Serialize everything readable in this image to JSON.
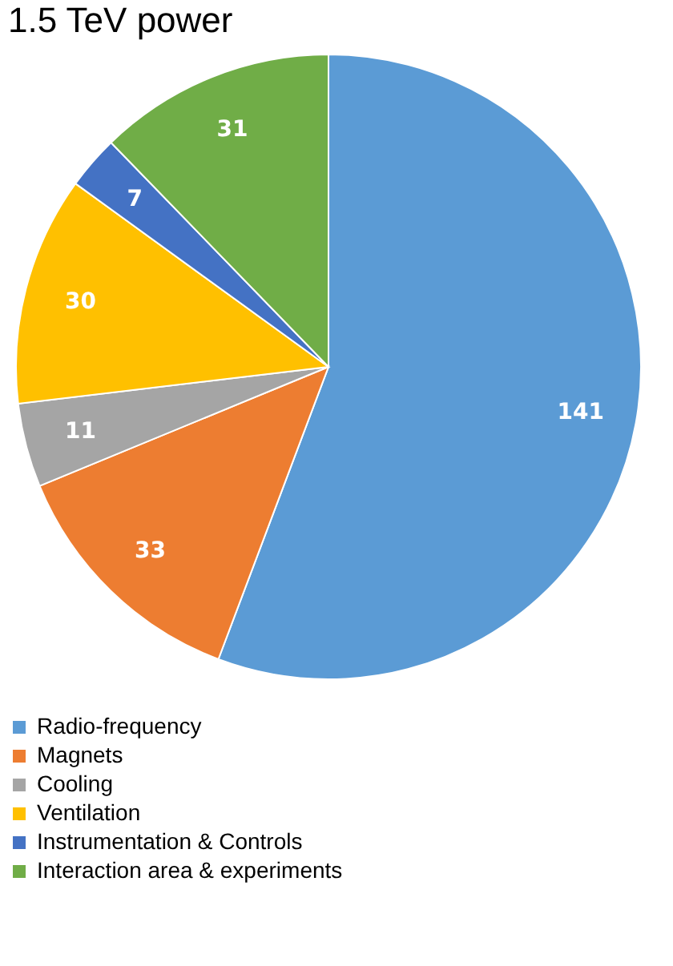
{
  "chart_data": {
    "type": "pie",
    "title": "1.5 TeV power",
    "categories": [
      "Radio-frequency",
      "Magnets",
      "Cooling",
      "Ventilation",
      "Instrumentation & Controls",
      "Interaction area & experiments"
    ],
    "values": [
      141,
      33,
      11,
      30,
      7,
      31
    ],
    "colors": [
      "#5b9bd5",
      "#ed7d31",
      "#a5a5a5",
      "#ffc000",
      "#4472c4",
      "#70ad47"
    ],
    "data_labels": true,
    "legend": "bottom"
  }
}
